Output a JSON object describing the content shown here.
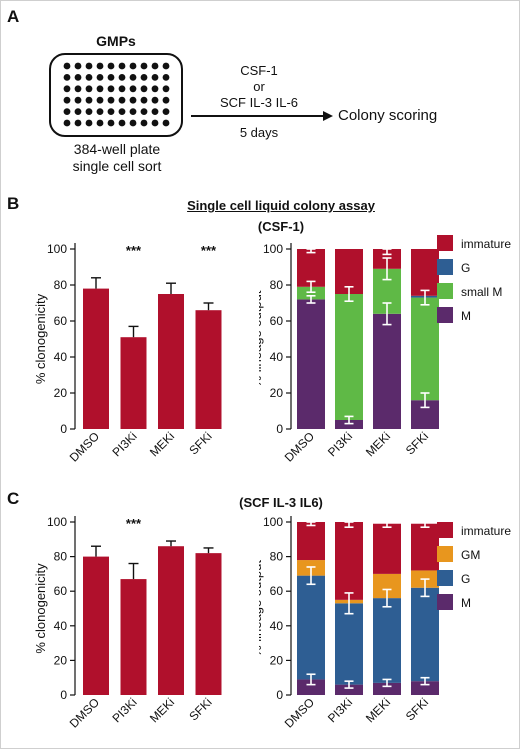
{
  "panels": {
    "a": "A",
    "b": "B",
    "c": "C"
  },
  "schematic": {
    "plate_title": "GMPs",
    "plate_caption_line1": "384-well plate",
    "plate_caption_line2": "single cell sort",
    "arrow_line1": "CSF-1",
    "arrow_line2": "or",
    "arrow_line3": "SCF IL-3 IL-6",
    "arrow_duration": "5 days",
    "result_label": "Colony scoring"
  },
  "section_b": {
    "title": "Single cell liquid colony assay",
    "condition": "(CSF-1)"
  },
  "section_c": {
    "condition": "(SCF IL-3 IL6)"
  },
  "colors": {
    "red": "#b0102c",
    "blue": "#2e5e93",
    "green": "#5fb946",
    "purple": "#5b2a6b",
    "orange": "#e8961e"
  },
  "chart_data": [
    {
      "id": "b_clonogenicity",
      "type": "bar",
      "categories": [
        "DMSO",
        "PI3Ki",
        "MEKi",
        "SFKi"
      ],
      "values": [
        78,
        51,
        75,
        66
      ],
      "errors": [
        6,
        6,
        6,
        4
      ],
      "significance": [
        "",
        "***",
        "",
        "***"
      ],
      "ylabel": "% clonogenicity",
      "ylim": [
        0,
        100
      ],
      "yticks": [
        0,
        20,
        40,
        60,
        80,
        100
      ],
      "color": "#b0102c"
    },
    {
      "id": "b_lineage",
      "type": "bar",
      "stacked": true,
      "categories": [
        "DMSO",
        "PI3Ki",
        "MEKi",
        "SFKi"
      ],
      "ylabel": "% lineage output",
      "ylim": [
        0,
        100
      ],
      "yticks": [
        0,
        20,
        40,
        60,
        80,
        100
      ],
      "series": [
        {
          "name": "M",
          "color": "#5b2a6b",
          "values": [
            72,
            5,
            64,
            16
          ],
          "errors": [
            2,
            2,
            6,
            4
          ]
        },
        {
          "name": "small M",
          "color": "#5fb946",
          "values": [
            7,
            70,
            25,
            57
          ],
          "errors": [
            3,
            4,
            6,
            4
          ]
        },
        {
          "name": "G",
          "color": "#2e5e93",
          "values": [
            0,
            0,
            0,
            1
          ],
          "errors": [
            0,
            0,
            0,
            0
          ]
        },
        {
          "name": "immature",
          "color": "#b0102c",
          "values": [
            21,
            25,
            11,
            26
          ],
          "errors": [
            2,
            0,
            3,
            0
          ]
        }
      ],
      "legend": [
        "immature",
        "G",
        "small M",
        "M"
      ]
    },
    {
      "id": "c_clonogenicity",
      "type": "bar",
      "categories": [
        "DMSO",
        "PI3Ki",
        "MEKi",
        "SFKi"
      ],
      "values": [
        80,
        67,
        86,
        82
      ],
      "errors": [
        6,
        9,
        3,
        3
      ],
      "significance": [
        "",
        "***",
        "",
        ""
      ],
      "ylabel": "% clonogenicity",
      "ylim": [
        0,
        100
      ],
      "yticks": [
        0,
        20,
        40,
        60,
        80,
        100
      ],
      "color": "#b0102c"
    },
    {
      "id": "c_lineage",
      "type": "bar",
      "stacked": true,
      "categories": [
        "DMSO",
        "PI3Ki",
        "MEKi",
        "SFKi"
      ],
      "ylabel": "% lineage output",
      "ylim": [
        0,
        100
      ],
      "yticks": [
        0,
        20,
        40,
        60,
        80,
        100
      ],
      "series": [
        {
          "name": "M",
          "color": "#5b2a6b",
          "values": [
            9,
            6,
            7,
            8
          ],
          "errors": [
            3,
            2,
            2,
            2
          ]
        },
        {
          "name": "G",
          "color": "#2e5e93",
          "values": [
            60,
            47,
            49,
            54
          ],
          "errors": [
            5,
            6,
            5,
            5
          ]
        },
        {
          "name": "GM",
          "color": "#e8961e",
          "values": [
            9,
            2,
            14,
            10
          ],
          "errors": [
            0,
            0,
            0,
            0
          ]
        },
        {
          "name": "immature",
          "color": "#b0102c",
          "values": [
            22,
            45,
            29,
            27
          ],
          "errors": [
            2,
            3,
            2,
            2
          ]
        }
      ],
      "legend": [
        "immature",
        "GM",
        "G",
        "M"
      ]
    }
  ]
}
